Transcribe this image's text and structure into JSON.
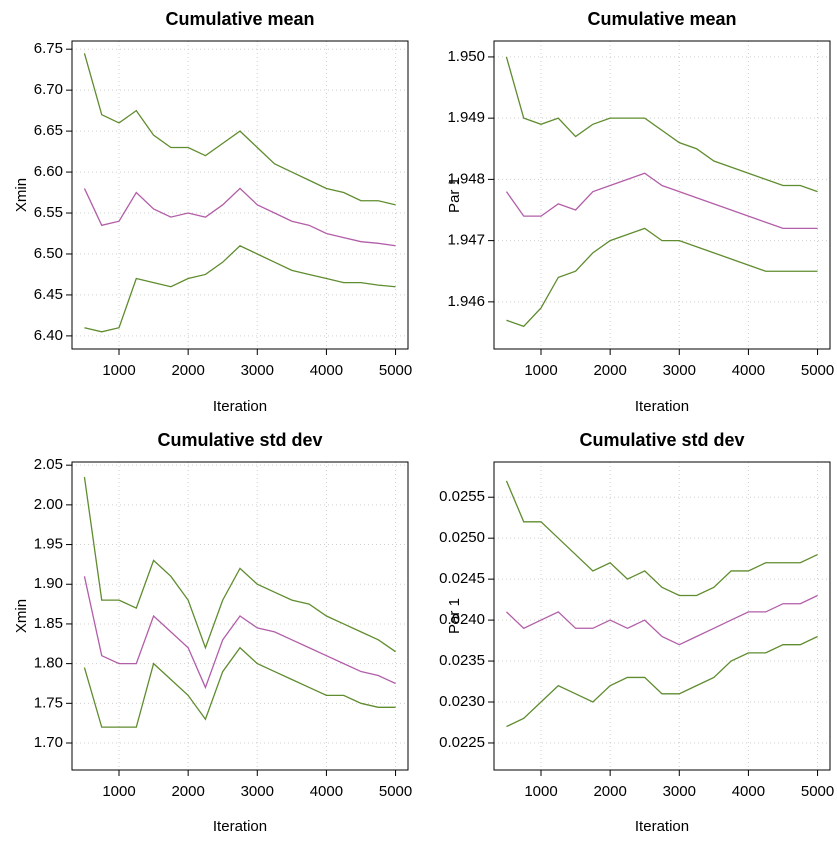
{
  "chart_data": [
    {
      "type": "line",
      "title": "Cumulative mean",
      "xlabel": "Iteration",
      "ylabel": "Xmin",
      "x": [
        500,
        750,
        1000,
        1250,
        1500,
        1750,
        2000,
        2250,
        2500,
        2750,
        3000,
        3250,
        3500,
        3750,
        4000,
        4250,
        4500,
        4750,
        5000
      ],
      "series": [
        {
          "color": "#5f8c2e",
          "values": [
            6.745,
            6.67,
            6.66,
            6.675,
            6.645,
            6.63,
            6.63,
            6.62,
            6.635,
            6.65,
            6.63,
            6.61,
            6.6,
            6.59,
            6.58,
            6.575,
            6.565,
            6.565,
            6.56
          ]
        },
        {
          "color": "#b25ea8",
          "values": [
            6.58,
            6.535,
            6.54,
            6.575,
            6.555,
            6.545,
            6.55,
            6.545,
            6.56,
            6.58,
            6.56,
            6.55,
            6.54,
            6.535,
            6.525,
            6.52,
            6.515,
            6.513,
            6.51
          ]
        },
        {
          "color": "#5f8c2e",
          "values": [
            6.41,
            6.405,
            6.41,
            6.47,
            6.465,
            6.46,
            6.47,
            6.475,
            6.49,
            6.51,
            6.5,
            6.49,
            6.48,
            6.475,
            6.47,
            6.465,
            6.465,
            6.462,
            6.46
          ]
        }
      ],
      "xlim": [
        320,
        5180
      ],
      "ylim": [
        6.384,
        6.76
      ],
      "xticks": [
        1000,
        2000,
        3000,
        4000,
        5000
      ],
      "yticks": [
        {
          "value": 6.4,
          "label": "6.40"
        },
        6.45,
        {
          "value": 6.5,
          "label": "6.50"
        },
        6.55,
        {
          "value": 6.6,
          "label": "6.60"
        },
        6.65,
        {
          "value": 6.7,
          "label": "6.70"
        },
        6.75
      ],
      "grid": true
    },
    {
      "type": "line",
      "title": "Cumulative mean",
      "xlabel": "Iteration",
      "ylabel": "Par 1",
      "x": [
        500,
        750,
        1000,
        1250,
        1500,
        1750,
        2000,
        2250,
        2500,
        2750,
        3000,
        3250,
        3500,
        3750,
        4000,
        4250,
        4500,
        4750,
        5000
      ],
      "series": [
        {
          "color": "#5f8c2e",
          "values": [
            1.95,
            1.949,
            1.9489,
            1.949,
            1.9487,
            1.9489,
            1.949,
            1.949,
            1.949,
            1.9488,
            1.9486,
            1.9485,
            1.9483,
            1.9482,
            1.9481,
            1.948,
            1.9479,
            1.9479,
            1.9478
          ]
        },
        {
          "color": "#b25ea8",
          "values": [
            1.9478,
            1.9474,
            1.9474,
            1.9476,
            1.9475,
            1.9478,
            1.9479,
            1.948,
            1.9481,
            1.9479,
            1.9478,
            1.9477,
            1.9476,
            1.9475,
            1.9474,
            1.9473,
            1.9472,
            1.9472,
            1.9472
          ]
        },
        {
          "color": "#5f8c2e",
          "values": [
            1.9457,
            1.9456,
            1.9459,
            1.9464,
            1.9465,
            1.9468,
            1.947,
            1.9471,
            1.9472,
            1.947,
            1.947,
            1.9469,
            1.9468,
            1.9467,
            1.9466,
            1.9465,
            1.9465,
            1.9465,
            1.9465
          ]
        }
      ],
      "xlim": [
        320,
        5180
      ],
      "ylim": [
        1.94523,
        1.95026
      ],
      "xticks": [
        1000,
        2000,
        3000,
        4000,
        5000
      ],
      "yticks": [
        1.946,
        1.947,
        1.948,
        1.949,
        {
          "value": 1.95,
          "label": "1.950"
        }
      ],
      "grid": true
    },
    {
      "type": "line",
      "title": "Cumulative std dev",
      "xlabel": "Iteration",
      "ylabel": "Xmin",
      "x": [
        500,
        750,
        1000,
        1250,
        1500,
        1750,
        2000,
        2250,
        2500,
        2750,
        3000,
        3250,
        3500,
        3750,
        4000,
        4250,
        4500,
        4750,
        5000
      ],
      "series": [
        {
          "color": "#5f8c2e",
          "values": [
            2.035,
            1.88,
            1.88,
            1.87,
            1.93,
            1.91,
            1.88,
            1.82,
            1.88,
            1.92,
            1.9,
            1.89,
            1.88,
            1.875,
            1.86,
            1.85,
            1.84,
            1.83,
            1.815
          ]
        },
        {
          "color": "#b25ea8",
          "values": [
            1.91,
            1.81,
            1.8,
            1.8,
            1.86,
            1.84,
            1.82,
            1.77,
            1.83,
            1.86,
            1.845,
            1.84,
            1.83,
            1.82,
            1.81,
            1.8,
            1.79,
            1.785,
            1.775
          ]
        },
        {
          "color": "#5f8c2e",
          "values": [
            1.795,
            1.72,
            1.72,
            1.72,
            1.8,
            1.78,
            1.76,
            1.73,
            1.79,
            1.82,
            1.8,
            1.79,
            1.78,
            1.77,
            1.76,
            1.76,
            1.75,
            1.745,
            1.745
          ]
        }
      ],
      "xlim": [
        320,
        5180
      ],
      "ylim": [
        1.666,
        2.054
      ],
      "xticks": [
        1000,
        2000,
        3000,
        4000,
        5000
      ],
      "yticks": [
        {
          "value": 1.7,
          "label": "1.70"
        },
        1.75,
        {
          "value": 1.8,
          "label": "1.80"
        },
        1.85,
        {
          "value": 1.9,
          "label": "1.90"
        },
        1.95,
        {
          "value": 2.0,
          "label": "2.00"
        },
        2.05
      ],
      "grid": true
    },
    {
      "type": "line",
      "title": "Cumulative std dev",
      "xlabel": "Iteration",
      "ylabel": "Par 1",
      "x": [
        500,
        750,
        1000,
        1250,
        1500,
        1750,
        2000,
        2250,
        2500,
        2750,
        3000,
        3250,
        3500,
        3750,
        4000,
        4250,
        4500,
        4750,
        5000
      ],
      "series": [
        {
          "color": "#5f8c2e",
          "values": [
            0.0257,
            0.0252,
            0.0252,
            0.025,
            0.0248,
            0.0246,
            0.0247,
            0.0245,
            0.0246,
            0.0244,
            0.0243,
            0.0243,
            0.0244,
            0.0246,
            0.0246,
            0.0247,
            0.0247,
            0.0247,
            0.0248
          ]
        },
        {
          "color": "#b25ea8",
          "values": [
            0.0241,
            0.0239,
            0.024,
            0.0241,
            0.0239,
            0.0239,
            0.024,
            0.0239,
            0.024,
            0.0238,
            0.0237,
            0.0238,
            0.0239,
            0.024,
            0.0241,
            0.0241,
            0.0242,
            0.0242,
            0.0243
          ]
        },
        {
          "color": "#5f8c2e",
          "values": [
            0.0227,
            0.0228,
            0.023,
            0.0232,
            0.0231,
            0.023,
            0.0232,
            0.0233,
            0.0233,
            0.0231,
            0.0231,
            0.0232,
            0.0233,
            0.0235,
            0.0236,
            0.0236,
            0.0237,
            0.0237,
            0.0238
          ]
        }
      ],
      "xlim": [
        320,
        5180
      ],
      "ylim": [
        0.02217,
        0.02593
      ],
      "xticks": [
        1000,
        2000,
        3000,
        4000,
        5000
      ],
      "yticks": [
        0.0225,
        {
          "value": 0.023,
          "label": "0.0230"
        },
        0.0235,
        {
          "value": 0.024,
          "label": "0.0240"
        },
        0.0245,
        {
          "value": 0.025,
          "label": "0.0250"
        },
        0.0255
      ],
      "grid": true
    }
  ]
}
